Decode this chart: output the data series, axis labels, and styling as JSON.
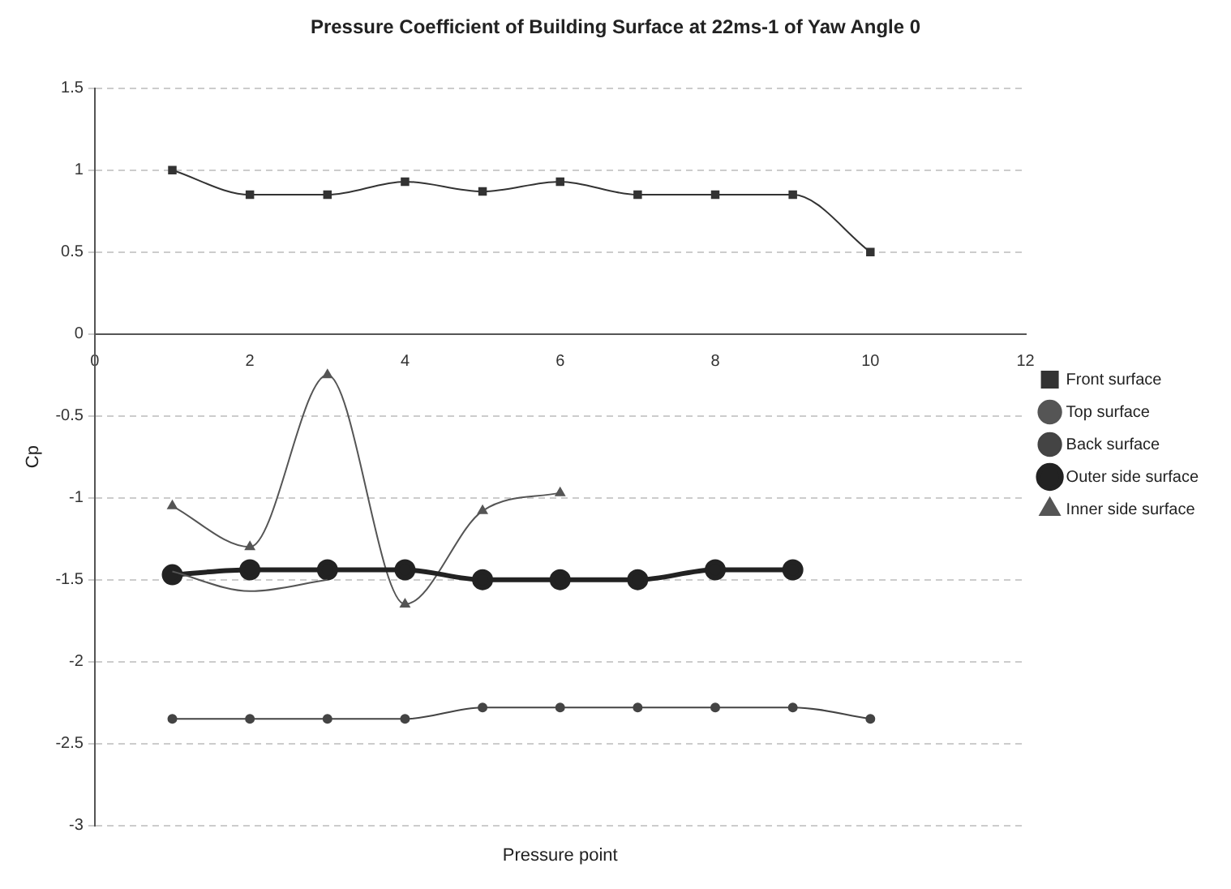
{
  "chart_data": {
    "type": "line",
    "title": "Pressure Coefficient of Building Surface at 22ms-1 of Yaw Angle 0",
    "xlabel": "Pressure point",
    "ylabel": "Cp",
    "xlim": [
      0,
      12
    ],
    "xticks": [
      0,
      2,
      4,
      6,
      8,
      10,
      12
    ],
    "ylim": [
      -3,
      1.5
    ],
    "yticks": [
      -3,
      -2.5,
      -2,
      -1.5,
      -1,
      -0.5,
      0,
      0.5,
      1,
      1.5
    ],
    "grid": "y",
    "legend": "right",
    "series": [
      {
        "name": "Front surface",
        "color": "#333333",
        "marker": "square",
        "x": [
          1,
          2,
          3,
          4,
          5,
          6,
          7,
          8,
          9,
          10
        ],
        "values": [
          1.0,
          0.85,
          0.85,
          0.93,
          0.87,
          0.93,
          0.85,
          0.85,
          0.85,
          0.5
        ]
      },
      {
        "name": "Top surface",
        "color": "#555555",
        "marker": "none",
        "x": [
          1,
          2,
          3
        ],
        "values": [
          -1.45,
          -1.57,
          -1.5
        ]
      },
      {
        "name": "Back surface",
        "color": "#444444",
        "marker": "circle",
        "x": [
          1,
          2,
          3,
          4,
          5,
          6,
          7,
          8,
          9,
          10
        ],
        "values": [
          -2.35,
          -2.35,
          -2.35,
          -2.35,
          -2.28,
          -2.28,
          -2.28,
          -2.28,
          -2.28,
          -2.35
        ]
      },
      {
        "name": "Outer side surface",
        "color": "#222222",
        "marker": "circle",
        "x": [
          1,
          2,
          3,
          4,
          5,
          6,
          7,
          8,
          9
        ],
        "values": [
          -1.47,
          -1.44,
          -1.44,
          -1.44,
          -1.5,
          -1.5,
          -1.5,
          -1.44,
          -1.44
        ]
      },
      {
        "name": "Inner side surface",
        "color": "#555555",
        "marker": "triangle",
        "x": [
          1,
          2,
          3,
          4,
          5,
          6
        ],
        "values": [
          -1.05,
          -1.3,
          -0.25,
          -1.65,
          -1.08,
          -0.97
        ]
      }
    ]
  }
}
